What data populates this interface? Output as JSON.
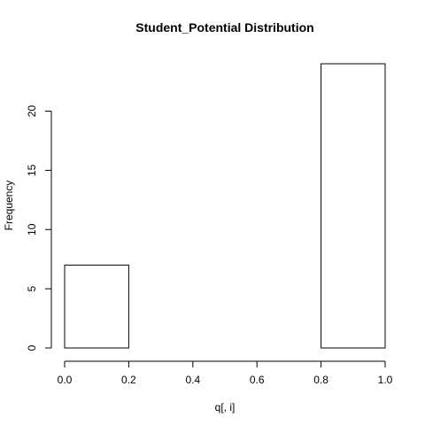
{
  "chart_data": {
    "type": "bar",
    "title": "Student_Potential Distribution",
    "xlabel": "q[, i]",
    "ylabel": "Frequency",
    "xlim": [
      0,
      1
    ],
    "ylim": [
      0,
      24
    ],
    "bins": [
      {
        "x0": 0.0,
        "x1": 0.2,
        "value": 7
      },
      {
        "x0": 0.2,
        "x1": 0.4,
        "value": 0
      },
      {
        "x0": 0.4,
        "x1": 0.6,
        "value": 0
      },
      {
        "x0": 0.6,
        "x1": 0.8,
        "value": 0
      },
      {
        "x0": 0.8,
        "x1": 1.0,
        "value": 24
      }
    ],
    "x_ticks": [
      {
        "value": 0.0,
        "label": "0.0"
      },
      {
        "value": 0.2,
        "label": "0.2"
      },
      {
        "value": 0.4,
        "label": "0.4"
      },
      {
        "value": 0.6,
        "label": "0.6"
      },
      {
        "value": 0.8,
        "label": "0.8"
      },
      {
        "value": 1.0,
        "label": "1.0"
      }
    ],
    "y_ticks": [
      {
        "value": 0,
        "label": "0"
      },
      {
        "value": 5,
        "label": "5"
      },
      {
        "value": 10,
        "label": "10"
      },
      {
        "value": 15,
        "label": "15"
      },
      {
        "value": 20,
        "label": "20"
      }
    ],
    "grid": false,
    "legend": "none",
    "colors": {
      "bar_fill": "#ffffff",
      "bar_stroke": "#000000"
    }
  }
}
